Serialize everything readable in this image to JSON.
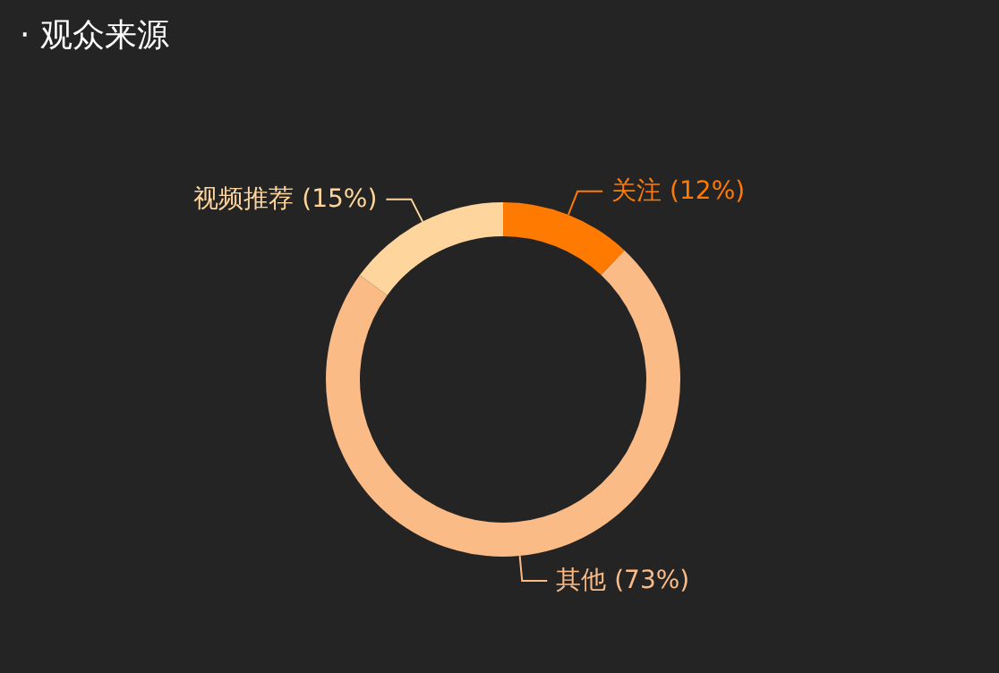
{
  "chart_data": {
    "type": "donut",
    "title": "· 观众来源",
    "categories": [
      "关注",
      "其他",
      "视频推荐"
    ],
    "values": [
      12,
      73,
      15
    ],
    "value_labels": [
      "(12%)",
      "(73%)",
      "(15%)"
    ],
    "colors": [
      "#ff7a00",
      "#fbbb86",
      "#fed59c"
    ]
  }
}
